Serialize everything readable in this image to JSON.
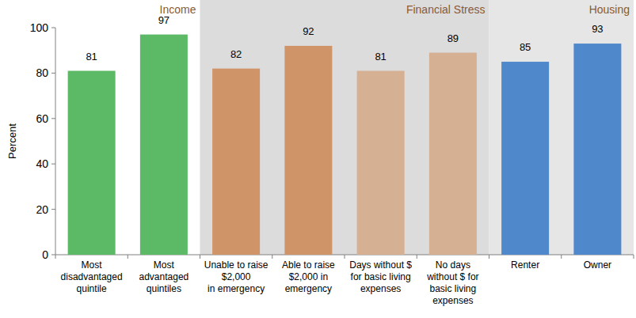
{
  "chart_data": {
    "type": "bar",
    "categories": [
      "Most\ndisadvantaged\nquintile",
      "Most\nadvantaged\nquintiles",
      "Unable to raise\n$2,000\nin emergency",
      "Able to raise\n$2,000 in\nemergency",
      "Days without $\nfor basic living\nexpenses",
      "No days\nwithout $ for\nbasic living\nexpenses",
      "Renter",
      "Owner"
    ],
    "values": [
      81,
      97,
      82,
      92,
      81,
      89,
      85,
      93
    ],
    "colors": [
      "#5cb966",
      "#5cb966",
      "#cf9569",
      "#cf9569",
      "#d6b092",
      "#d6b092",
      "#4f88cb",
      "#4f88cb"
    ],
    "groups": [
      {
        "label": "Income",
        "count": 2
      },
      {
        "label": "Financial Stress",
        "count": 4
      },
      {
        "label": "Housing",
        "count": 2
      }
    ],
    "y_label": "Percent",
    "ylim": [
      0,
      100
    ],
    "yticks": [
      0,
      20,
      40,
      60,
      80,
      100
    ],
    "data_labels": true,
    "grid": false
  }
}
